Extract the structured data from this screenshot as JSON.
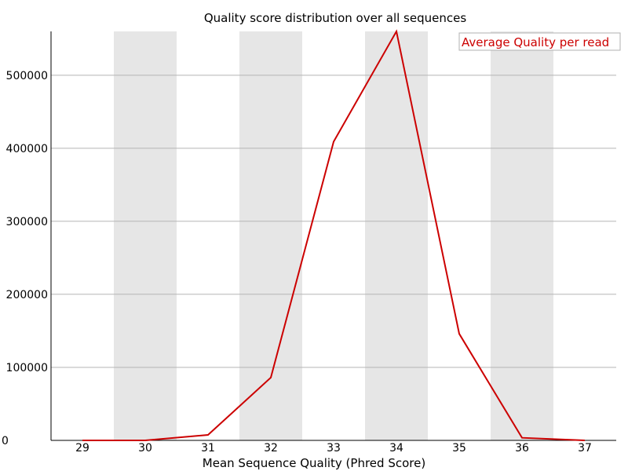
{
  "chart_data": {
    "type": "line",
    "title": "Quality score distribution over all sequences",
    "xlabel": "Mean Sequence Quality (Phred Score)",
    "ylabel": "",
    "x": [
      29,
      30,
      31,
      32,
      33,
      34,
      35,
      36,
      37
    ],
    "xlim": [
      28.5,
      37.5
    ],
    "ylim": [
      0,
      560000
    ],
    "yticks": [
      0,
      100000,
      200000,
      300000,
      400000,
      500000
    ],
    "grid": "horizontal",
    "shaded_bands": "alternating columns 30, 32, 34, 36",
    "legend_position": "top-right",
    "series": [
      {
        "name": "Average Quality per read",
        "color": "#cc0000",
        "values": [
          0,
          0,
          7500,
          86000,
          409000,
          560000,
          146000,
          3500,
          0
        ]
      }
    ]
  }
}
